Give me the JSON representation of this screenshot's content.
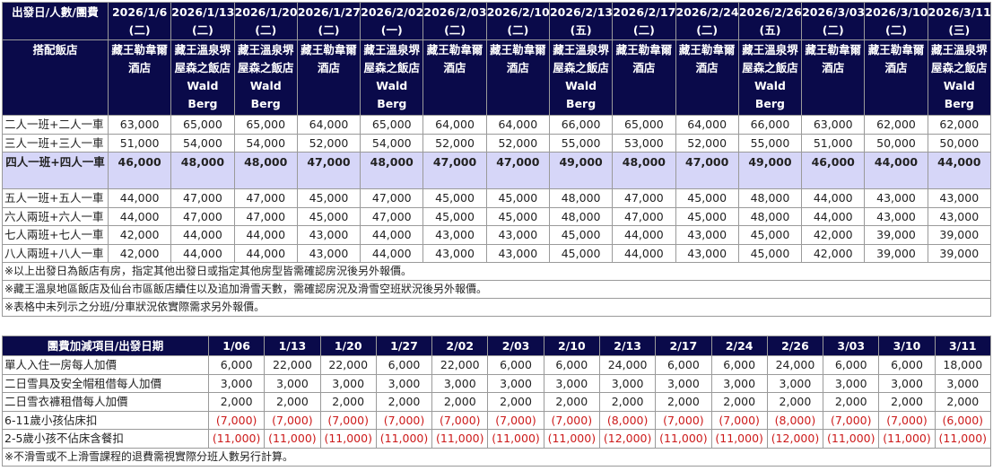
{
  "table1": {
    "corner": "出發日/人數/團費",
    "dates": [
      {
        "date": "2026/1/6",
        "dow": "(二)"
      },
      {
        "date": "2026/1/13",
        "dow": "(二)"
      },
      {
        "date": "2026/1/20",
        "dow": "(二)"
      },
      {
        "date": "2026/1/27",
        "dow": "(二)"
      },
      {
        "date": "2026/2/02",
        "dow": "(一)"
      },
      {
        "date": "2026/2/03",
        "dow": "(二)"
      },
      {
        "date": "2026/2/10",
        "dow": "(二)"
      },
      {
        "date": "2026/2/13",
        "dow": "(五)"
      },
      {
        "date": "2026/2/17",
        "dow": "(二)"
      },
      {
        "date": "2026/2/24",
        "dow": "(二)"
      },
      {
        "date": "2026/2/26",
        "dow": "(五)"
      },
      {
        "date": "2026/3/03",
        "dow": "(二)"
      },
      {
        "date": "2026/3/10",
        "dow": "(二)"
      },
      {
        "date": "2026/3/11",
        "dow": "(三)"
      }
    ],
    "hotel_label": "搭配飯店",
    "hotels": [
      "藏王勒韋爾酒店",
      "藏王溫泉堺屋森之飯店 Wald Berg",
      "藏王溫泉堺屋森之飯店 Wald Berg",
      "藏王勒韋爾酒店",
      "藏王溫泉堺屋森之飯店 Wald Berg",
      "藏王勒韋爾酒店",
      "藏王勒韋爾酒店",
      "藏王溫泉堺屋森之飯店 Wald Berg",
      "藏王勒韋爾酒店",
      "藏王勒韋爾酒店",
      "藏王溫泉堺屋森之飯店 Wald Berg",
      "藏王勒韋爾酒店",
      "藏王勒韋爾酒店",
      "藏王溫泉堺屋森之飯店 Wald Berg"
    ],
    "rows": [
      {
        "label": "二人一班+二人一車",
        "values": [
          "63,000",
          "65,000",
          "65,000",
          "64,000",
          "65,000",
          "64,000",
          "64,000",
          "66,000",
          "65,000",
          "64,000",
          "66,000",
          "63,000",
          "62,000",
          "62,000"
        ]
      },
      {
        "label": "三人一班+三人一車",
        "values": [
          "51,000",
          "54,000",
          "54,000",
          "52,000",
          "54,000",
          "52,000",
          "52,000",
          "55,000",
          "53,000",
          "52,000",
          "55,000",
          "51,000",
          "50,000",
          "50,000"
        ]
      },
      {
        "label": "四人一班+四人一車",
        "highlight": true,
        "values": [
          "46,000",
          "48,000",
          "48,000",
          "47,000",
          "48,000",
          "47,000",
          "47,000",
          "49,000",
          "48,000",
          "47,000",
          "49,000",
          "46,000",
          "44,000",
          "44,000"
        ]
      },
      {
        "label": "五人一班+五人一車",
        "values": [
          "44,000",
          "47,000",
          "47,000",
          "45,000",
          "47,000",
          "45,000",
          "45,000",
          "48,000",
          "47,000",
          "45,000",
          "48,000",
          "44,000",
          "43,000",
          "43,000"
        ]
      },
      {
        "label": "六人兩班+六人一車",
        "values": [
          "44,000",
          "47,000",
          "47,000",
          "45,000",
          "47,000",
          "45,000",
          "45,000",
          "48,000",
          "47,000",
          "45,000",
          "48,000",
          "44,000",
          "43,000",
          "43,000"
        ]
      },
      {
        "label": "七人兩班+七人一車",
        "values": [
          "42,000",
          "44,000",
          "44,000",
          "43,000",
          "44,000",
          "43,000",
          "43,000",
          "45,000",
          "44,000",
          "43,000",
          "45,000",
          "42,000",
          "39,000",
          "39,000"
        ]
      },
      {
        "label": "八人兩班+八人一車",
        "values": [
          "42,000",
          "44,000",
          "44,000",
          "43,000",
          "44,000",
          "43,000",
          "43,000",
          "45,000",
          "44,000",
          "43,000",
          "45,000",
          "42,000",
          "39,000",
          "39,000"
        ]
      }
    ],
    "notes": [
      "※以上出發日為飯店有房，指定其他出發日或指定其他房型皆需確認房況後另外報價。",
      "※藏王溫泉地區飯店及仙台市區飯店續住以及追加滑雪天數，需確認房況及滑雪空班狀況後另外報價。",
      "※表格中未列示之分班/分車狀況依實際需求另外報價。"
    ]
  },
  "table2": {
    "corner": "團費加減項目/出發日期",
    "dates": [
      "1/06",
      "1/13",
      "1/20",
      "1/27",
      "2/02",
      "2/03",
      "2/10",
      "2/13",
      "2/17",
      "2/24",
      "2/26",
      "3/03",
      "3/10",
      "3/11"
    ],
    "rows": [
      {
        "label": "單人入住一房每人加價",
        "negative": false,
        "values": [
          "6,000",
          "22,000",
          "22,000",
          "6,000",
          "22,000",
          "6,000",
          "6,000",
          "24,000",
          "6,000",
          "6,000",
          "24,000",
          "6,000",
          "6,000",
          "18,000"
        ]
      },
      {
        "label": "二日雪具及安全帽租借每人加價",
        "negative": false,
        "values": [
          "3,000",
          "3,000",
          "3,000",
          "3,000",
          "3,000",
          "3,000",
          "3,000",
          "3,000",
          "3,000",
          "3,000",
          "3,000",
          "3,000",
          "3,000",
          "3,000"
        ]
      },
      {
        "label": "二日雪衣褲租借每人加價",
        "negative": false,
        "values": [
          "2,000",
          "2,000",
          "2,000",
          "2,000",
          "2,000",
          "2,000",
          "2,000",
          "2,000",
          "2,000",
          "2,000",
          "2,000",
          "2,000",
          "2,000",
          "2,000"
        ]
      },
      {
        "label": "6-11歲小孩佔床扣",
        "negative": true,
        "values": [
          "(7,000)",
          "(7,000)",
          "(7,000)",
          "(7,000)",
          "(7,000)",
          "(7,000)",
          "(7,000)",
          "(8,000)",
          "(7,000)",
          "(7,000)",
          "(8,000)",
          "(7,000)",
          "(7,000)",
          "(6,000)"
        ]
      },
      {
        "label": "2-5歲小孩不佔床含餐扣",
        "negative": true,
        "values": [
          "(11,000)",
          "(11,000)",
          "(11,000)",
          "(11,000)",
          "(11,000)",
          "(11,000)",
          "(11,000)",
          "(12,000)",
          "(11,000)",
          "(11,000)",
          "(12,000)",
          "(11,000)",
          "(11,000)",
          "(11,000)"
        ]
      }
    ],
    "note": "※不滑雪或不上滑雪課程的退費需視實際分班人數另行計算。"
  },
  "colors": {
    "header_bg": "#0a0a4a",
    "header_text": "#ffffff",
    "highlight_row": "#d6d6f8",
    "negative": "#cc1a1a",
    "border": "#9a9a9a"
  }
}
